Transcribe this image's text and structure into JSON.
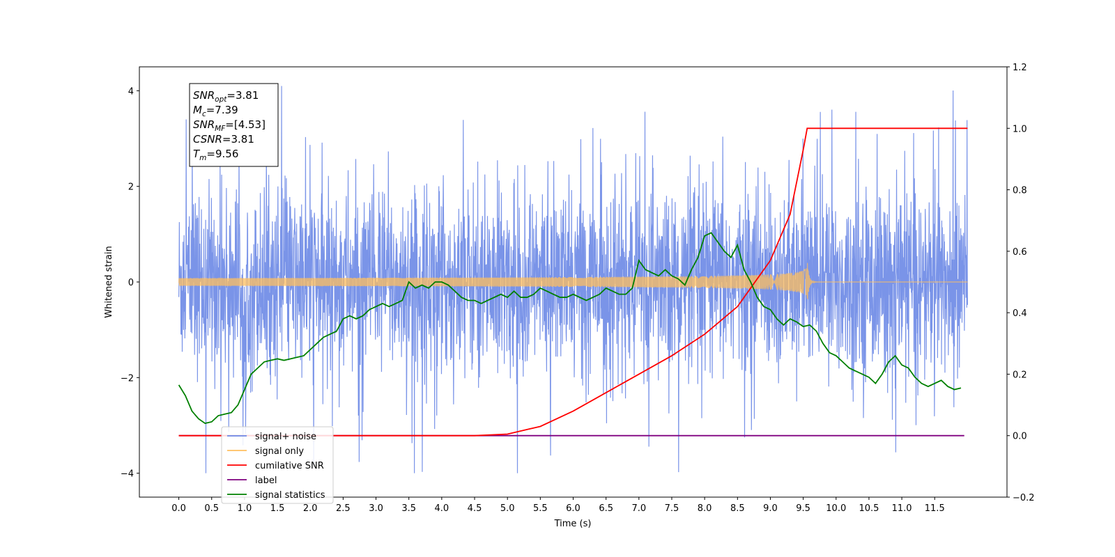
{
  "chart_data": {
    "type": "line",
    "xlabel": "Time (s)",
    "ylabel": "Whitened strain",
    "xlim": [
      -0.6,
      12.6
    ],
    "ylim": [
      -4.5,
      4.5
    ],
    "y2lim": [
      -0.2,
      1.2
    ],
    "xticks": [
      "0.0",
      "0.5",
      "1.0",
      "1.5",
      "2.0",
      "2.5",
      "3.0",
      "3.5",
      "4.0",
      "4.5",
      "5.0",
      "5.5",
      "6.0",
      "6.5",
      "7.0",
      "7.5",
      "8.0",
      "8.5",
      "9.0",
      "9.5",
      "10.0",
      "10.5",
      "11.0",
      "11.5"
    ],
    "yticks": [
      "-4",
      "-2",
      "0",
      "2",
      "4"
    ],
    "y2ticks": [
      "-0.2",
      "0.0",
      "0.2",
      "0.4",
      "0.6",
      "0.8",
      "1.0",
      "1.2"
    ],
    "grid": false,
    "legend_location": "lower left",
    "info_box": {
      "lines": [
        {
          "sym": "SNR",
          "sub": "opt",
          "val": "=3.81"
        },
        {
          "sym": "M",
          "sub": "c",
          "val": "=7.39"
        },
        {
          "sym": "SNR",
          "sub": "MF",
          "val": "=[4.53]"
        },
        {
          "sym": "CSNR",
          "sub": "",
          "val": "=3.81"
        },
        {
          "sym": "T",
          "sub": "m",
          "val": "=9.56"
        }
      ]
    },
    "series": [
      {
        "name": "signal+ noise",
        "color": "#6b88e6",
        "axis": "left",
        "kind": "noise",
        "t_range": [
          0.0,
          12.0
        ],
        "std": 1.05,
        "peak_max": 4.1
      },
      {
        "name": "signal only",
        "color": "#ffbf5f",
        "axis": "left",
        "kind": "chirp",
        "t_range": [
          0.0,
          12.0
        ],
        "merger_time": 9.56,
        "peak_amplitude": 0.5
      },
      {
        "name": "cumilative SNR",
        "color": "#ff0000",
        "axis": "right",
        "x": [
          0.0,
          4.5,
          5.0,
          5.5,
          6.0,
          6.5,
          7.0,
          7.5,
          8.0,
          8.5,
          9.0,
          9.3,
          9.5,
          9.56,
          12.0
        ],
        "y": [
          0.0,
          0.0,
          0.005,
          0.03,
          0.08,
          0.14,
          0.2,
          0.26,
          0.33,
          0.42,
          0.57,
          0.72,
          0.93,
          1.0,
          1.0
        ]
      },
      {
        "name": "label",
        "color": "#7f007f",
        "axis": "right",
        "x": [
          0.0,
          11.95
        ],
        "y": [
          0.0,
          0.0
        ]
      },
      {
        "name": "signal statistics",
        "color": "#008000",
        "axis": "right",
        "x": [
          0.0,
          0.1,
          0.2,
          0.3,
          0.4,
          0.5,
          0.6,
          0.7,
          0.8,
          0.9,
          1.0,
          1.1,
          1.2,
          1.3,
          1.4,
          1.5,
          1.6,
          1.7,
          1.8,
          1.9,
          2.0,
          2.1,
          2.2,
          2.3,
          2.4,
          2.5,
          2.6,
          2.7,
          2.8,
          2.9,
          3.0,
          3.1,
          3.2,
          3.3,
          3.4,
          3.5,
          3.6,
          3.7,
          3.8,
          3.9,
          4.0,
          4.1,
          4.2,
          4.3,
          4.4,
          4.5,
          4.6,
          4.7,
          4.8,
          4.9,
          5.0,
          5.1,
          5.2,
          5.3,
          5.4,
          5.5,
          5.6,
          5.7,
          5.8,
          5.9,
          6.0,
          6.1,
          6.2,
          6.3,
          6.4,
          6.5,
          6.6,
          6.7,
          6.8,
          6.9,
          7.0,
          7.1,
          7.2,
          7.3,
          7.4,
          7.5,
          7.6,
          7.7,
          7.8,
          7.9,
          8.0,
          8.1,
          8.2,
          8.3,
          8.4,
          8.5,
          8.6,
          8.7,
          8.8,
          8.9,
          9.0,
          9.1,
          9.2,
          9.3,
          9.4,
          9.5,
          9.6,
          9.7,
          9.8,
          9.9,
          10.0,
          10.1,
          10.2,
          10.3,
          10.4,
          10.5,
          10.6,
          10.7,
          10.8,
          10.9,
          11.0,
          11.1,
          11.2,
          11.3,
          11.4,
          11.5,
          11.6,
          11.7,
          11.8,
          11.9
        ],
        "y": [
          0.165,
          0.13,
          0.08,
          0.055,
          0.04,
          0.045,
          0.065,
          0.07,
          0.075,
          0.1,
          0.15,
          0.2,
          0.22,
          0.24,
          0.245,
          0.25,
          0.245,
          0.25,
          0.255,
          0.26,
          0.28,
          0.3,
          0.32,
          0.33,
          0.34,
          0.38,
          0.39,
          0.38,
          0.39,
          0.41,
          0.42,
          0.43,
          0.42,
          0.43,
          0.44,
          0.5,
          0.48,
          0.49,
          0.48,
          0.5,
          0.5,
          0.49,
          0.47,
          0.45,
          0.44,
          0.44,
          0.43,
          0.44,
          0.45,
          0.46,
          0.45,
          0.47,
          0.45,
          0.45,
          0.46,
          0.48,
          0.47,
          0.46,
          0.45,
          0.45,
          0.46,
          0.45,
          0.44,
          0.45,
          0.46,
          0.48,
          0.47,
          0.46,
          0.46,
          0.48,
          0.57,
          0.54,
          0.53,
          0.52,
          0.54,
          0.52,
          0.51,
          0.49,
          0.54,
          0.58,
          0.65,
          0.66,
          0.63,
          0.6,
          0.58,
          0.62,
          0.54,
          0.5,
          0.45,
          0.42,
          0.41,
          0.38,
          0.36,
          0.38,
          0.37,
          0.355,
          0.36,
          0.34,
          0.3,
          0.27,
          0.26,
          0.24,
          0.22,
          0.21,
          0.2,
          0.19,
          0.17,
          0.2,
          0.24,
          0.26,
          0.23,
          0.22,
          0.19,
          0.17,
          0.16,
          0.17,
          0.18,
          0.16,
          0.15,
          0.155
        ]
      }
    ]
  }
}
